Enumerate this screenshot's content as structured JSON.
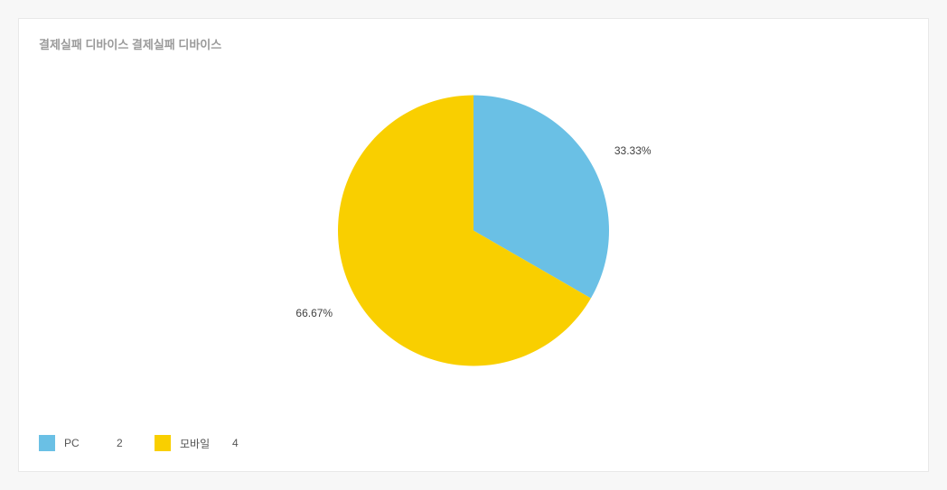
{
  "card": {
    "title": "결제실패 디바이스 결제실패 디바이스",
    "title_color": "#9a9a9a",
    "title_fontsize": 13,
    "background_color": "#ffffff",
    "border_color": "#e8e8e8"
  },
  "page": {
    "background_color": "#f7f7f7"
  },
  "chart": {
    "type": "pie",
    "radius": 150,
    "start_angle_deg": -90,
    "label_offset": 30,
    "label_fontsize": 12,
    "label_color": "#404040",
    "slices": [
      {
        "name": "PC",
        "value": 2,
        "percent": 33.33,
        "percent_label": "33.33%",
        "color": "#6ac0e5"
      },
      {
        "name": "모바일",
        "value": 4,
        "percent": 66.67,
        "percent_label": "66.67%",
        "color": "#f9cf00"
      }
    ]
  },
  "legend": {
    "swatch_size": 18,
    "fontsize": 12,
    "text_color": "#555555",
    "items": [
      {
        "label": "PC",
        "value": "2",
        "color": "#6ac0e5"
      },
      {
        "label": "모바일",
        "value": "4",
        "color": "#f9cf00"
      }
    ]
  }
}
